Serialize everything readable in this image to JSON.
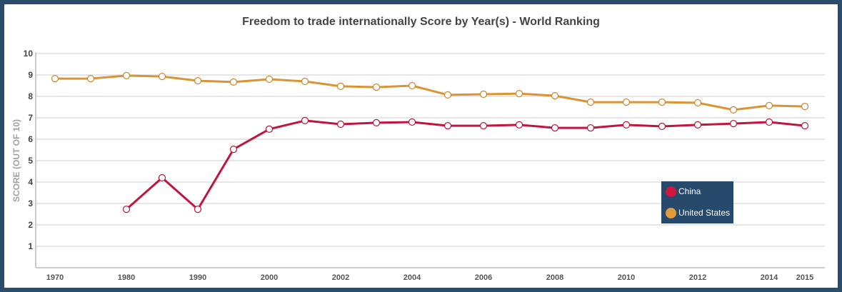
{
  "chart_data": {
    "type": "line",
    "title": "Freedom to trade internationally Score by Year(s) - World Ranking",
    "xlabel": "",
    "ylabel": "SCORE (OUT OF 10)",
    "ylim": [
      0,
      10
    ],
    "yticks": [
      "1",
      "2",
      "3",
      "4",
      "5",
      "6",
      "7",
      "8",
      "9",
      "10"
    ],
    "x": [
      "1970",
      "1975",
      "1980",
      "1985",
      "1990",
      "1995",
      "2000",
      "2001",
      "2002",
      "2003",
      "2004",
      "2005",
      "2006",
      "2007",
      "2008",
      "2009",
      "2010",
      "2011",
      "2012",
      "2013",
      "2014",
      "2015"
    ],
    "xtick_labels": [
      "1970",
      "1980",
      "1990",
      "2000",
      "2002",
      "2004",
      "2006",
      "2008",
      "2010",
      "2012",
      "2014",
      "2015"
    ],
    "grid": true,
    "legend_position": "right",
    "series": [
      {
        "name": "China",
        "color": "#c0163e",
        "marker_color": "#b5173c",
        "values": [
          null,
          null,
          2.73,
          4.2,
          2.73,
          5.53,
          6.47,
          6.87,
          6.7,
          6.77,
          6.8,
          6.63,
          6.63,
          6.67,
          6.53,
          6.53,
          6.67,
          6.6,
          6.67,
          6.73,
          6.8,
          6.63
        ]
      },
      {
        "name": "United States",
        "color": "#d99436",
        "marker_color": "#c8882f",
        "values": [
          8.83,
          8.83,
          8.97,
          8.93,
          8.73,
          8.67,
          8.8,
          8.7,
          8.47,
          8.43,
          8.5,
          8.07,
          8.1,
          8.13,
          8.03,
          7.73,
          7.73,
          7.73,
          7.7,
          7.37,
          7.57,
          7.53
        ]
      }
    ]
  }
}
